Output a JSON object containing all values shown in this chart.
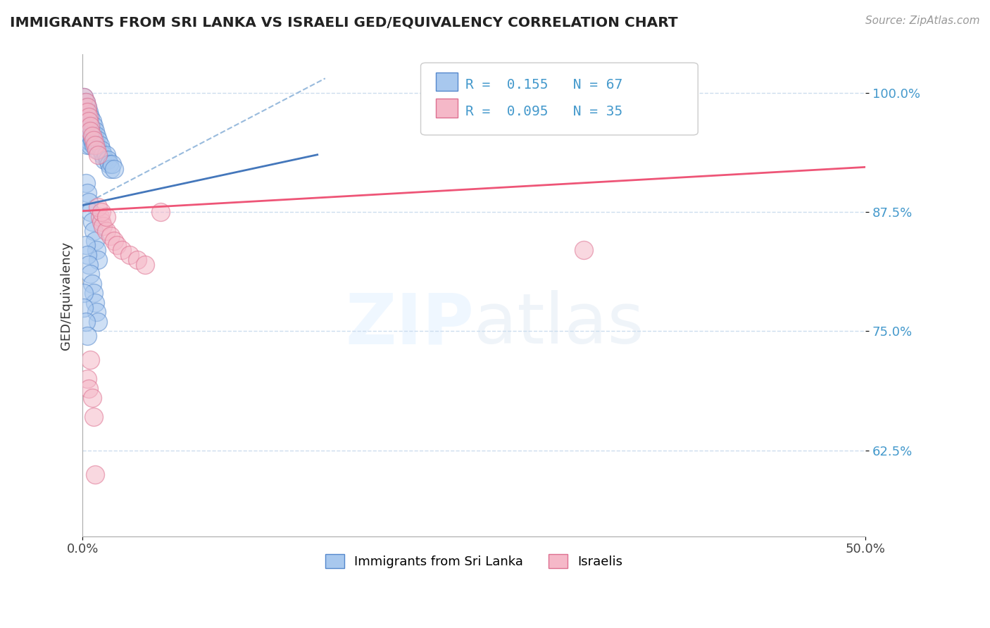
{
  "title": "IMMIGRANTS FROM SRI LANKA VS ISRAELI GED/EQUIVALENCY CORRELATION CHART",
  "source": "Source: ZipAtlas.com",
  "ylabel": "GED/Equivalency",
  "y_ticks": [
    0.625,
    0.75,
    0.875,
    1.0
  ],
  "y_tick_labels": [
    "62.5%",
    "75.0%",
    "87.5%",
    "100.0%"
  ],
  "xlim": [
    0.0,
    0.5
  ],
  "ylim": [
    0.535,
    1.04
  ],
  "legend1_R": "0.155",
  "legend1_N": "67",
  "legend2_R": "0.095",
  "legend2_N": "35",
  "legend_label1": "Immigrants from Sri Lanka",
  "legend_label2": "Israelis",
  "blue_face": "#A8C8EE",
  "blue_edge": "#5588CC",
  "pink_face": "#F5B8C8",
  "pink_edge": "#DD7090",
  "blue_line_color": "#4477BB",
  "pink_line_color": "#EE5577",
  "dashed_color": "#99BBDD",
  "grid_color": "#CCDDEE",
  "title_color": "#222222",
  "tick_color": "#4499CC",
  "blue_line_x": [
    0.0,
    0.15
  ],
  "blue_line_y": [
    0.882,
    0.935
  ],
  "pink_line_x": [
    0.0,
    0.5
  ],
  "pink_line_y": [
    0.876,
    0.922
  ],
  "dashed_line_x": [
    0.0,
    0.155
  ],
  "dashed_line_y": [
    0.882,
    1.015
  ],
  "sri_lanka_x": [
    0.001,
    0.001,
    0.001,
    0.001,
    0.001,
    0.002,
    0.002,
    0.002,
    0.002,
    0.002,
    0.003,
    0.003,
    0.003,
    0.003,
    0.003,
    0.004,
    0.004,
    0.004,
    0.004,
    0.005,
    0.005,
    0.005,
    0.005,
    0.006,
    0.006,
    0.006,
    0.007,
    0.007,
    0.007,
    0.008,
    0.008,
    0.009,
    0.009,
    0.01,
    0.01,
    0.011,
    0.012,
    0.013,
    0.014,
    0.015,
    0.016,
    0.017,
    0.018,
    0.019,
    0.02,
    0.002,
    0.003,
    0.004,
    0.005,
    0.006,
    0.007,
    0.008,
    0.009,
    0.01,
    0.002,
    0.003,
    0.004,
    0.005,
    0.006,
    0.007,
    0.008,
    0.009,
    0.01,
    0.001,
    0.001,
    0.002,
    0.003
  ],
  "sri_lanka_y": [
    0.995,
    0.985,
    0.975,
    0.965,
    0.955,
    0.99,
    0.98,
    0.97,
    0.96,
    0.95,
    0.985,
    0.975,
    0.965,
    0.955,
    0.945,
    0.98,
    0.97,
    0.96,
    0.95,
    0.975,
    0.965,
    0.955,
    0.945,
    0.97,
    0.96,
    0.95,
    0.965,
    0.955,
    0.945,
    0.96,
    0.95,
    0.955,
    0.945,
    0.95,
    0.94,
    0.945,
    0.94,
    0.935,
    0.93,
    0.935,
    0.93,
    0.925,
    0.92,
    0.925,
    0.92,
    0.905,
    0.895,
    0.885,
    0.875,
    0.865,
    0.855,
    0.845,
    0.835,
    0.825,
    0.84,
    0.83,
    0.82,
    0.81,
    0.8,
    0.79,
    0.78,
    0.77,
    0.76,
    0.79,
    0.775,
    0.76,
    0.745
  ],
  "israeli_x": [
    0.001,
    0.002,
    0.003,
    0.003,
    0.004,
    0.004,
    0.005,
    0.005,
    0.006,
    0.007,
    0.008,
    0.009,
    0.01,
    0.011,
    0.012,
    0.013,
    0.015,
    0.018,
    0.02,
    0.022,
    0.025,
    0.03,
    0.035,
    0.04,
    0.05,
    0.003,
    0.004,
    0.005,
    0.006,
    0.007,
    0.008,
    0.01,
    0.012,
    0.015,
    0.32
  ],
  "israeli_y": [
    0.995,
    0.99,
    0.985,
    0.98,
    0.975,
    0.97,
    0.965,
    0.96,
    0.955,
    0.95,
    0.945,
    0.94,
    0.935,
    0.87,
    0.865,
    0.86,
    0.855,
    0.85,
    0.845,
    0.84,
    0.835,
    0.83,
    0.825,
    0.82,
    0.875,
    0.7,
    0.69,
    0.72,
    0.68,
    0.66,
    0.6,
    0.88,
    0.875,
    0.87,
    0.835
  ]
}
